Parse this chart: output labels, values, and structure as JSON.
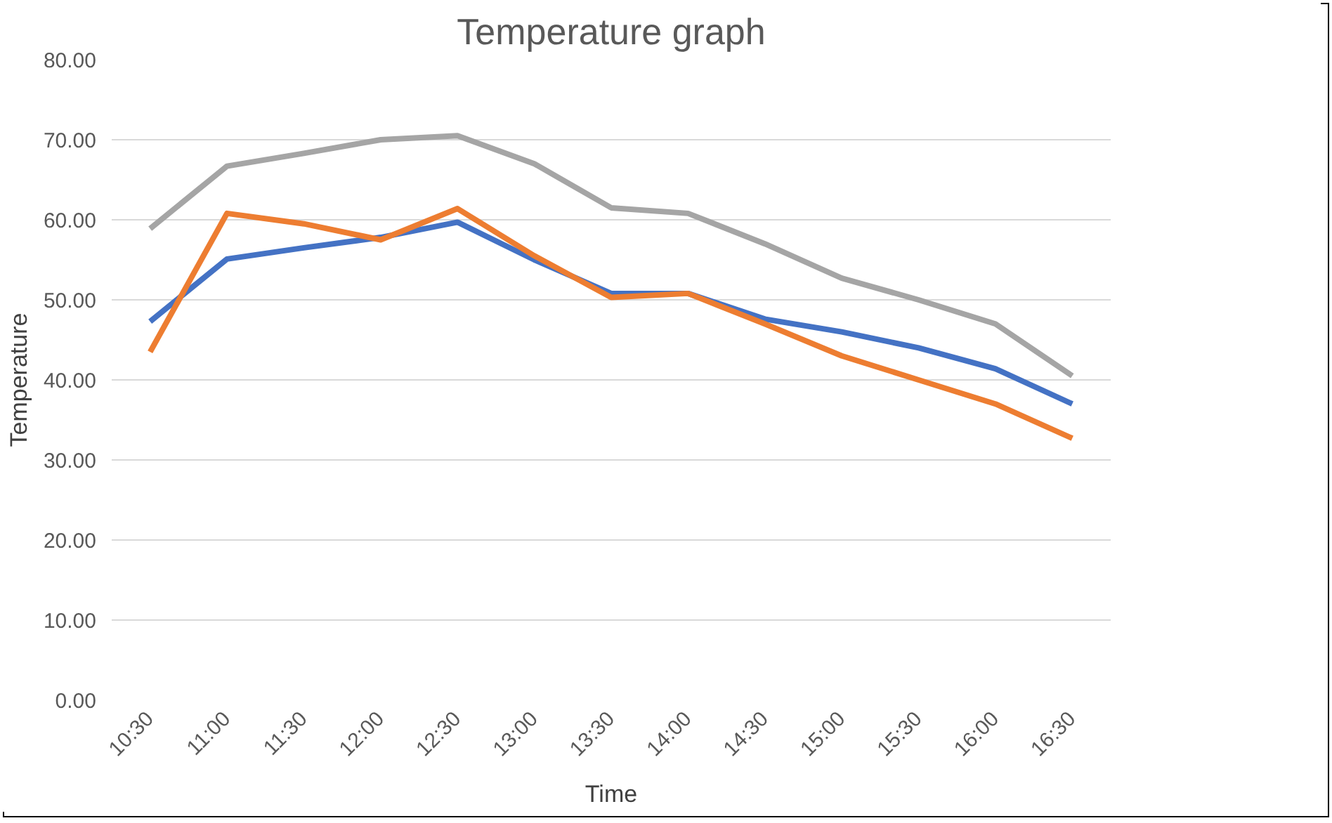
{
  "chart_data": {
    "type": "line",
    "title": "Temperature graph",
    "xlabel": "Time",
    "ylabel": "Temperature",
    "categories": [
      "10:30",
      "11:00",
      "11:30",
      "12:00",
      "12:30",
      "13:00",
      "13:30",
      "14:00",
      "14:30",
      "15:00",
      "15:30",
      "16:00",
      "16:30"
    ],
    "series": [
      {
        "color": "#4472c4",
        "values": [
          47.3,
          55.1,
          56.5,
          57.8,
          59.7,
          55.0,
          50.8,
          50.8,
          47.6,
          46.0,
          44.0,
          41.4,
          37.0
        ]
      },
      {
        "color": "#ed7d31",
        "values": [
          43.5,
          60.8,
          59.5,
          57.5,
          61.4,
          55.5,
          50.3,
          50.8,
          47.0,
          43.0,
          40.0,
          37.0,
          32.7
        ]
      },
      {
        "color": "#a5a5a5",
        "values": [
          58.9,
          66.7,
          68.3,
          70.0,
          70.5,
          67.0,
          61.5,
          60.8,
          57.0,
          52.7,
          50.0,
          47.0,
          40.5
        ]
      }
    ],
    "ylim": [
      0,
      80
    ],
    "yticks": [
      {
        "value": 0,
        "label": "0.00"
      },
      {
        "value": 10,
        "label": "10.00"
      },
      {
        "value": 20,
        "label": "20.00"
      },
      {
        "value": 30,
        "label": "30.00"
      },
      {
        "value": 40,
        "label": "40.00"
      },
      {
        "value": 50,
        "label": "50.00"
      },
      {
        "value": 60,
        "label": "60.00"
      },
      {
        "value": 70,
        "label": "70.00"
      },
      {
        "value": 80,
        "label": "80.00"
      }
    ],
    "grid": "y",
    "marker": "none",
    "line_style": "solid"
  }
}
